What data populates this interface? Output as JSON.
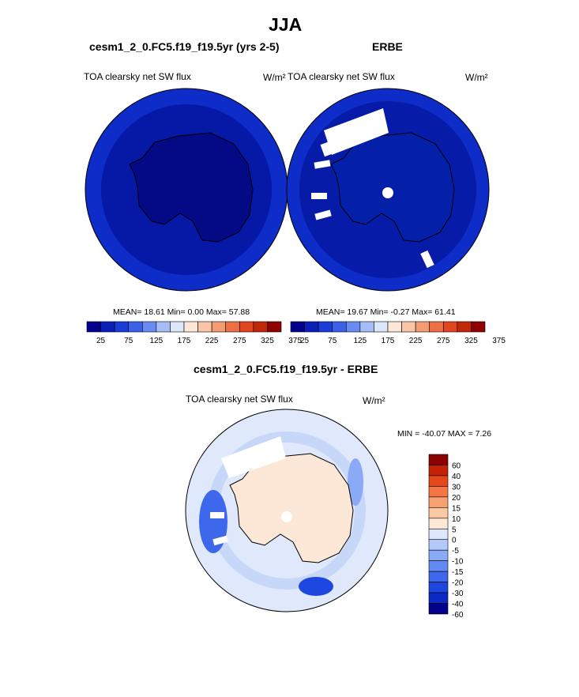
{
  "page": {
    "title": "JJA",
    "diff_title": "cesm1_2_0.FC5.f19_f19.5yr - ERBE"
  },
  "colors": {
    "abs_palette": [
      "#01018c",
      "#0a1fb8",
      "#1a3cd9",
      "#3b61e8",
      "#6a8cf2",
      "#a6bef7",
      "#dde7fb",
      "#fde7d8",
      "#f9c5a6",
      "#f59b70",
      "#ee6f45",
      "#e04620",
      "#c02808",
      "#900000"
    ],
    "diff_palette": [
      "#01018c",
      "#0b29c4",
      "#1e47e0",
      "#3e68ec",
      "#6389f2",
      "#8aa9f6",
      "#b3c9fa",
      "#dde8fc",
      "#fde8d6",
      "#fcc7a3",
      "#f9a070",
      "#f57545",
      "#e54818",
      "#c52205",
      "#8b0000"
    ],
    "antarctica_fill_left": "#040a86",
    "antarctica_fill_right": "#0520a8",
    "ocean_fill": "#1030cc",
    "diff_antarctica_fill": "#fde7d6",
    "diff_ocean_fill": "#dfe9fb"
  },
  "chart_data": [
    {
      "type": "heatmap",
      "projection": "south-polar-stereographic",
      "case_title": "cesm1_2_0.FC5.f19_f19.5yr (yrs 2-5)",
      "variable": "TOA clearsky net SW flux",
      "units": "W/m²",
      "mean": 18.61,
      "min": 0.0,
      "max": 57.88,
      "stats_text": "MEAN=  18.61  Min=   0.00  Max=  57.88",
      "colorbar": {
        "levels": [
          25,
          50,
          75,
          100,
          125,
          150,
          175,
          200,
          225,
          250,
          275,
          300,
          325,
          350,
          375
        ],
        "tick_labels": [
          "25",
          "75",
          "125",
          "175",
          "225",
          "275",
          "325",
          "375"
        ]
      }
    },
    {
      "type": "heatmap",
      "projection": "south-polar-stereographic",
      "case_title": "ERBE",
      "variable": "TOA clearsky net SW flux",
      "units": "W/m²",
      "mean": 19.67,
      "min": -0.27,
      "max": 61.41,
      "stats_text": "MEAN=  19.67  Min=  -0.27  Max=  61.41",
      "colorbar": {
        "levels": [
          25,
          50,
          75,
          100,
          125,
          150,
          175,
          200,
          225,
          250,
          275,
          300,
          325,
          350,
          375
        ],
        "tick_labels": [
          "25",
          "75",
          "125",
          "175",
          "225",
          "275",
          "325",
          "375"
        ]
      }
    },
    {
      "type": "heatmap",
      "projection": "south-polar-stereographic",
      "case_title": "cesm1_2_0.FC5.f19_f19.5yr - ERBE",
      "variable": "TOA clearsky net SW flux",
      "units": "W/m²",
      "min": -40.07,
      "max": 7.26,
      "stats_text": "MIN = -40.07 MAX =   7.26",
      "colorbar": {
        "levels": [
          60,
          40,
          30,
          20,
          15,
          10,
          5,
          0,
          -5,
          -10,
          -15,
          -20,
          -30,
          -40,
          -60
        ],
        "tick_labels": [
          "60",
          "40",
          "30",
          "20",
          "15",
          "10",
          "5",
          "0",
          "-5",
          "-10",
          "-15",
          "-20",
          "-30",
          "-40",
          "-60"
        ]
      }
    }
  ]
}
